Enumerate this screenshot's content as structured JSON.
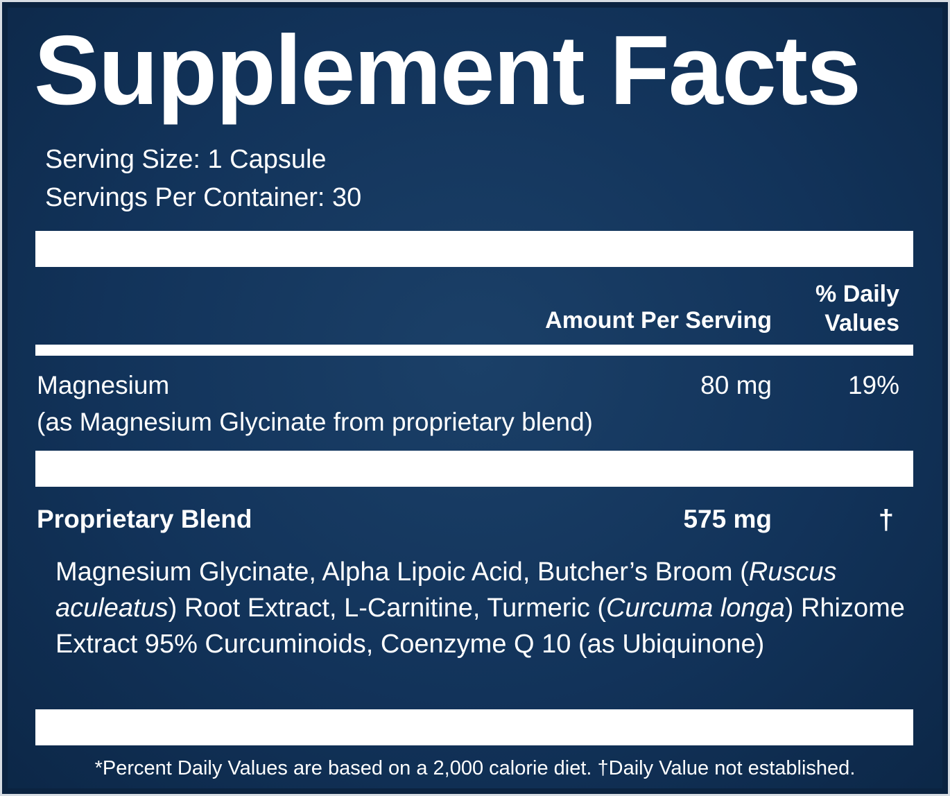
{
  "title": "Supplement Facts",
  "serving_size": "Serving Size: 1 Capsule",
  "servings_per_container": "Servings Per Container: 30",
  "table": {
    "header": {
      "amount": "Amount Per Serving",
      "daily_value": "% Daily Values"
    },
    "rows": [
      {
        "name": "Magnesium",
        "detail": "(as Magnesium Glycinate from proprietary blend)",
        "amount": "80 mg",
        "daily_value": "19%"
      },
      {
        "name": "Proprietary Blend",
        "amount": "575 mg",
        "daily_value": "†"
      }
    ],
    "ingredients": [
      "Magnesium Glycinate, Alpha Lipoic Acid, Butcher’s Broom (",
      "Ruscus aculeatus",
      ") Root Extract, L-Carnitine, Turmeric (",
      "Curcuma longa",
      ") Rhizome Extract 95% Curcuminoids, Coenzyme Q 10 (as Ubiquinone)"
    ]
  },
  "footnote": "*Percent Daily Values are based on a 2,000 calorie diet. †Daily Value not established."
}
